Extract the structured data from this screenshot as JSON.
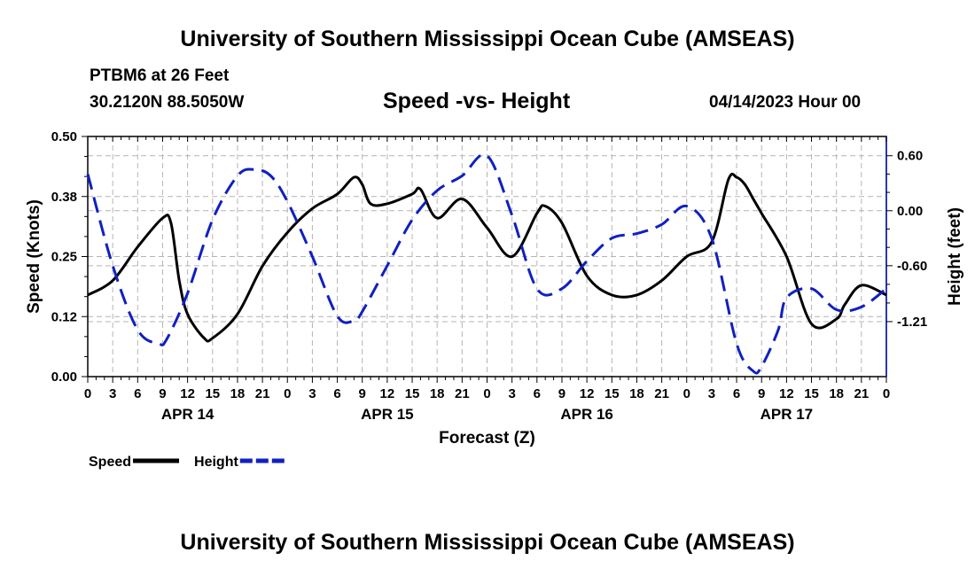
{
  "header": {
    "title": "University of Southern Mississippi Ocean Cube (AMSEAS)",
    "station": "PTBM6 at 26 Feet",
    "coords": "30.2120N  88.5050W",
    "date": "04/14/2023 Hour 00"
  },
  "footer": {
    "title": "University of Southern Mississippi Ocean Cube (AMSEAS)"
  },
  "chart_data": {
    "type": "line",
    "title": "Speed -vs- Height",
    "xlabel": "Forecast (Z)",
    "ylabel_left": "Speed (Knots)",
    "ylabel_right": "Height (feet)",
    "xlim": [
      0,
      96
    ],
    "ylim_left": [
      0.0,
      0.5
    ],
    "ylim_right": [
      -1.81,
      0.81
    ],
    "x_tick_labels": [
      "0",
      "3",
      "6",
      "9",
      "12",
      "15",
      "18",
      "21",
      "0",
      "3",
      "6",
      "9",
      "12",
      "15",
      "18",
      "21",
      "0",
      "3",
      "6",
      "9",
      "12",
      "15",
      "18",
      "21",
      "0",
      "3",
      "6",
      "9",
      "12",
      "15",
      "18",
      "21",
      "0"
    ],
    "left_tick_labels": [
      "0.00",
      "0.12",
      "0.25",
      "0.38",
      "0.50"
    ],
    "left_tick_values": [
      0.0,
      0.125,
      0.25,
      0.375,
      0.5
    ],
    "right_tick_labels": [
      "-1.21",
      "-0.60",
      "0.00",
      "0.60"
    ],
    "right_tick_values": [
      -1.21,
      -0.6,
      0.0,
      0.6
    ],
    "date_labels": [
      {
        "label": "APR 14",
        "x": 12
      },
      {
        "label": "APR 15",
        "x": 36
      },
      {
        "label": "APR 16",
        "x": 60
      },
      {
        "label": "APR 17",
        "x": 84
      }
    ],
    "grid": true,
    "legend_position": "bottom-left",
    "series": [
      {
        "name": "Speed",
        "axis": "left",
        "color": "#000000",
        "style": "solid",
        "x": [
          0,
          3,
          6,
          9,
          10,
          11,
          12,
          14,
          15,
          18,
          21,
          24,
          27,
          30,
          32,
          33,
          34,
          36,
          39,
          40,
          42,
          45,
          48,
          51,
          54,
          55,
          57,
          60,
          63,
          66,
          69,
          72,
          75,
          77,
          78,
          79,
          80,
          81,
          84,
          87,
          90,
          91,
          93,
          96
        ],
        "y": [
          0.17,
          0.2,
          0.27,
          0.33,
          0.32,
          0.2,
          0.13,
          0.08,
          0.08,
          0.13,
          0.23,
          0.3,
          0.35,
          0.38,
          0.415,
          0.4,
          0.36,
          0.36,
          0.38,
          0.39,
          0.33,
          0.37,
          0.31,
          0.25,
          0.34,
          0.355,
          0.32,
          0.21,
          0.17,
          0.17,
          0.2,
          0.25,
          0.28,
          0.41,
          0.415,
          0.4,
          0.37,
          0.34,
          0.25,
          0.11,
          0.12,
          0.15,
          0.19,
          0.17
        ]
      },
      {
        "name": "Height",
        "axis": "right",
        "color": "#1020c0",
        "style": "dashed",
        "x": [
          0,
          3,
          6,
          8.5,
          9.5,
          12,
          15,
          18,
          20,
          22,
          24,
          27,
          30,
          32,
          33,
          36,
          39,
          42,
          45,
          48,
          51,
          54,
          57,
          60,
          63,
          66,
          69,
          72,
          75,
          78,
          80,
          81,
          83,
          84,
          87,
          90,
          93,
          96
        ],
        "y": [
          0.4,
          -0.6,
          -1.3,
          -1.45,
          -1.4,
          -0.9,
          -0.1,
          0.38,
          0.45,
          0.38,
          0.1,
          -0.5,
          -1.15,
          -1.2,
          -1.1,
          -0.6,
          -0.1,
          0.22,
          0.38,
          0.6,
          -0.05,
          -0.85,
          -0.85,
          -0.55,
          -0.3,
          -0.25,
          -0.15,
          0.05,
          -0.3,
          -1.45,
          -1.75,
          -1.7,
          -1.3,
          -0.95,
          -0.85,
          -1.08,
          -1.05,
          -0.85
        ]
      }
    ],
    "legend": [
      {
        "label": "Speed",
        "color": "#000000",
        "style": "solid"
      },
      {
        "label": "Height",
        "color": "#1020c0",
        "style": "dashed"
      }
    ]
  }
}
